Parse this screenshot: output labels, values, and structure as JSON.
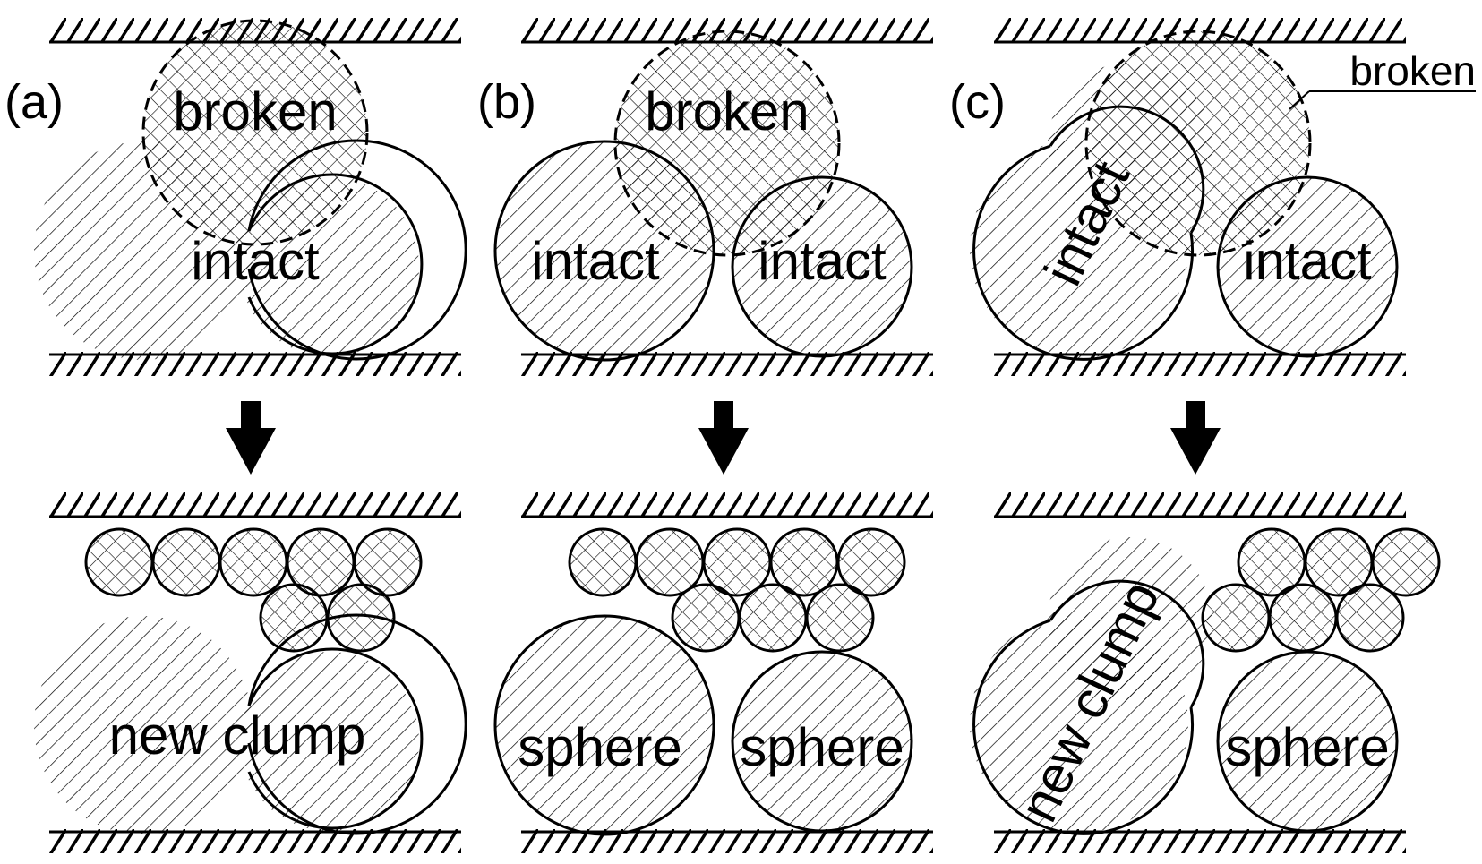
{
  "panels": [
    {
      "id": "a",
      "label": "(a)",
      "top_labels": {
        "broken": "broken",
        "intact": "intact"
      },
      "bottom_labels": {
        "result": "new clump"
      }
    },
    {
      "id": "b",
      "label": "(b)",
      "top_labels": {
        "broken": "broken",
        "intact_left": "intact",
        "intact_right": "intact"
      },
      "bottom_labels": {
        "left": "sphere",
        "right": "sphere"
      }
    },
    {
      "id": "c",
      "label": "(c)",
      "top_labels": {
        "broken": "broken",
        "intact_left": "intact",
        "intact_right": "intact"
      },
      "bottom_labels": {
        "left": "new clump",
        "right": "sphere"
      }
    }
  ],
  "colors": {
    "ink": "#000000",
    "background": "#ffffff"
  },
  "icons": {
    "transition": "down-arrow-icon"
  }
}
